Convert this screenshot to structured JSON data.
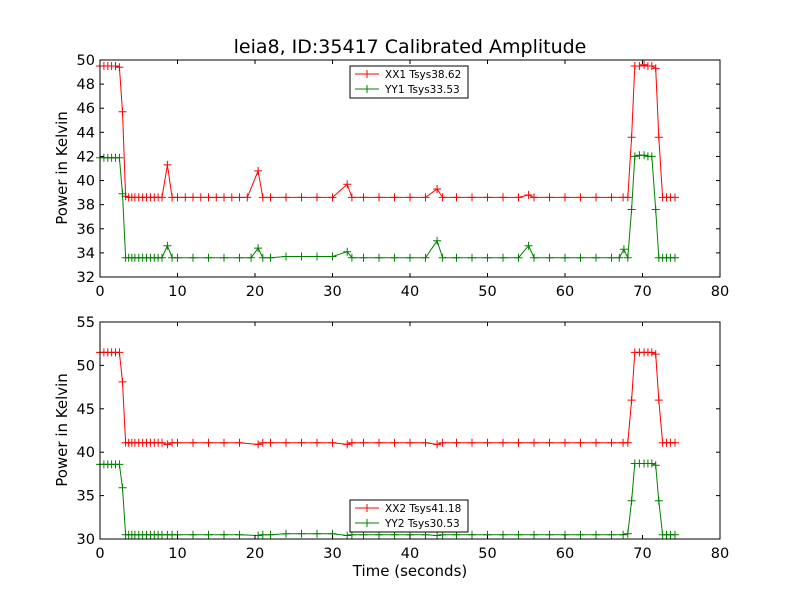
{
  "colors": {
    "xx": "#ff0000",
    "yy": "#008000"
  },
  "chart_data": [
    {
      "type": "line",
      "title": "leia8, ID:35417 Calibrated Amplitude",
      "xlabel": "",
      "ylabel": "Power in Kelvin",
      "xlim": [
        0,
        80
      ],
      "ylim": [
        32,
        50
      ],
      "xticks": [
        0,
        10,
        20,
        30,
        40,
        50,
        60,
        70,
        80
      ],
      "yticks": [
        32,
        34,
        36,
        38,
        40,
        42,
        44,
        46,
        48,
        50
      ],
      "grid": false,
      "legend_position": "top-center",
      "series": [
        {
          "name": "XX1 Tsys38.62",
          "color": "#ff0000",
          "x": [
            0.0,
            0.5,
            1.0,
            1.5,
            2.0,
            2.5,
            2.9,
            3.3,
            3.7,
            4.1,
            4.5,
            5.0,
            5.5,
            6.0,
            6.5,
            7.0,
            7.5,
            8.0,
            8.7,
            9.3,
            10.0,
            11.0,
            12.0,
            13.0,
            14.0,
            15.0,
            16.0,
            17.0,
            18.0,
            19.0,
            20.4,
            21.0,
            22.0,
            24.0,
            26.0,
            28.0,
            30.0,
            31.9,
            32.5,
            34.0,
            36.0,
            38.0,
            40.0,
            42.0,
            43.5,
            44.2,
            46.0,
            48.0,
            50.0,
            52.0,
            54.0,
            55.3,
            56.0,
            58.0,
            60.0,
            62.0,
            64.0,
            66.0,
            67.5,
            68.1,
            68.6,
            69.0,
            69.6,
            70.2,
            70.7,
            71.2,
            71.7,
            72.1,
            72.6,
            73.1,
            73.6,
            74.2
          ],
          "y": [
            49.5,
            49.5,
            49.5,
            49.5,
            49.5,
            49.4,
            45.7,
            38.7,
            38.6,
            38.6,
            38.6,
            38.6,
            38.6,
            38.6,
            38.6,
            38.6,
            38.6,
            38.6,
            41.3,
            38.6,
            38.6,
            38.6,
            38.6,
            38.6,
            38.6,
            38.6,
            38.6,
            38.6,
            38.6,
            38.6,
            40.8,
            38.6,
            38.6,
            38.6,
            38.6,
            38.6,
            38.6,
            39.7,
            38.6,
            38.6,
            38.6,
            38.6,
            38.6,
            38.6,
            39.3,
            38.6,
            38.6,
            38.6,
            38.6,
            38.6,
            38.6,
            38.8,
            38.6,
            38.6,
            38.6,
            38.6,
            38.6,
            38.6,
            38.6,
            38.6,
            43.6,
            49.5,
            49.5,
            49.6,
            49.5,
            49.5,
            49.3,
            43.6,
            38.6,
            38.6,
            38.6,
            38.6
          ]
        },
        {
          "name": "YY1 Tsys33.53",
          "color": "#008000",
          "x": [
            0.0,
            0.5,
            1.0,
            1.5,
            2.0,
            2.5,
            2.9,
            3.3,
            3.7,
            4.1,
            4.5,
            5.0,
            5.5,
            6.0,
            6.5,
            7.0,
            7.5,
            8.0,
            8.7,
            9.3,
            10.0,
            12.0,
            14.0,
            16.0,
            18.0,
            19.5,
            20.4,
            21.0,
            22.0,
            24.0,
            26.0,
            28.0,
            30.0,
            31.9,
            32.5,
            34.0,
            36.0,
            38.0,
            40.0,
            42.0,
            43.5,
            44.2,
            46.0,
            48.0,
            50.0,
            52.0,
            54.0,
            55.3,
            56.0,
            58.0,
            60.0,
            62.0,
            64.0,
            66.0,
            67.0,
            67.6,
            68.1,
            68.6,
            69.0,
            69.6,
            70.2,
            70.7,
            71.2,
            71.7,
            72.1,
            72.6,
            73.1,
            73.6,
            74.2
          ],
          "y": [
            41.9,
            41.9,
            41.9,
            41.9,
            41.9,
            41.9,
            38.9,
            33.6,
            33.6,
            33.6,
            33.6,
            33.6,
            33.6,
            33.6,
            33.6,
            33.6,
            33.6,
            33.6,
            34.6,
            33.6,
            33.6,
            33.6,
            33.6,
            33.6,
            33.6,
            33.6,
            34.4,
            33.6,
            33.6,
            33.7,
            33.7,
            33.7,
            33.7,
            34.1,
            33.6,
            33.6,
            33.6,
            33.6,
            33.6,
            33.6,
            35.0,
            33.6,
            33.6,
            33.6,
            33.6,
            33.6,
            33.6,
            34.6,
            33.6,
            33.6,
            33.6,
            33.6,
            33.6,
            33.6,
            33.6,
            34.3,
            33.6,
            37.6,
            42.0,
            42.1,
            42.1,
            42.0,
            42.0,
            37.6,
            33.6,
            33.6,
            33.6,
            33.6,
            33.6
          ]
        }
      ]
    },
    {
      "type": "line",
      "title": "",
      "xlabel": "Time (seconds)",
      "ylabel": "Power in Kelvin",
      "xlim": [
        0,
        80
      ],
      "ylim": [
        30,
        55
      ],
      "xticks": [
        0,
        10,
        20,
        30,
        40,
        50,
        60,
        70,
        80
      ],
      "yticks": [
        30,
        35,
        40,
        45,
        50,
        55
      ],
      "grid": false,
      "legend_position": "bottom-center",
      "series": [
        {
          "name": "XX2 Tsys41.18",
          "color": "#ff0000",
          "x": [
            0.0,
            0.5,
            1.0,
            1.5,
            2.0,
            2.5,
            2.9,
            3.3,
            3.7,
            4.1,
            4.5,
            5.0,
            5.5,
            6.0,
            6.5,
            7.0,
            7.5,
            8.0,
            8.7,
            9.3,
            10.0,
            12.0,
            14.0,
            16.0,
            18.0,
            20.4,
            21.0,
            22.0,
            24.0,
            26.0,
            28.0,
            30.0,
            31.9,
            32.5,
            34.0,
            36.0,
            38.0,
            40.0,
            42.0,
            43.5,
            44.2,
            46.0,
            48.0,
            50.0,
            52.0,
            54.0,
            56.0,
            58.0,
            60.0,
            62.0,
            64.0,
            66.0,
            67.5,
            68.1,
            68.6,
            69.0,
            69.6,
            70.2,
            70.7,
            71.2,
            71.7,
            72.1,
            72.6,
            73.1,
            73.6,
            74.2
          ],
          "y": [
            51.5,
            51.5,
            51.5,
            51.5,
            51.5,
            51.5,
            48.1,
            41.1,
            41.1,
            41.1,
            41.1,
            41.1,
            41.1,
            41.1,
            41.1,
            41.1,
            41.1,
            41.1,
            40.9,
            41.1,
            41.1,
            41.1,
            41.1,
            41.1,
            41.1,
            40.9,
            41.1,
            41.1,
            41.1,
            41.1,
            41.1,
            41.1,
            40.9,
            41.1,
            41.1,
            41.1,
            41.1,
            41.1,
            41.1,
            40.9,
            41.1,
            41.1,
            41.1,
            41.1,
            41.1,
            41.1,
            41.1,
            41.1,
            41.1,
            41.1,
            41.1,
            41.1,
            41.1,
            41.1,
            46.0,
            51.5,
            51.5,
            51.5,
            51.5,
            51.5,
            51.3,
            46.0,
            41.1,
            41.1,
            41.1,
            41.1
          ]
        },
        {
          "name": "YY2 Tsys30.53",
          "color": "#008000",
          "x": [
            0.0,
            0.5,
            1.0,
            1.5,
            2.0,
            2.5,
            2.9,
            3.3,
            3.7,
            4.1,
            4.5,
            5.0,
            5.5,
            6.0,
            6.5,
            7.0,
            7.5,
            8.0,
            8.7,
            9.3,
            10.0,
            12.0,
            14.0,
            16.0,
            18.0,
            20.4,
            21.0,
            22.0,
            24.0,
            26.0,
            28.0,
            30.0,
            31.9,
            32.5,
            34.0,
            36.0,
            38.0,
            40.0,
            42.0,
            43.5,
            44.2,
            46.0,
            48.0,
            50.0,
            52.0,
            54.0,
            56.0,
            58.0,
            60.0,
            62.0,
            64.0,
            66.0,
            67.5,
            68.1,
            68.6,
            69.0,
            69.6,
            70.2,
            70.7,
            71.2,
            71.7,
            72.1,
            72.6,
            73.1,
            73.6,
            74.2
          ],
          "y": [
            38.6,
            38.6,
            38.6,
            38.6,
            38.6,
            38.6,
            35.9,
            30.5,
            30.5,
            30.5,
            30.5,
            30.5,
            30.5,
            30.5,
            30.5,
            30.5,
            30.5,
            30.5,
            30.5,
            30.5,
            30.5,
            30.5,
            30.5,
            30.5,
            30.5,
            30.4,
            30.5,
            30.5,
            30.6,
            30.6,
            30.6,
            30.6,
            30.4,
            30.5,
            30.5,
            30.5,
            30.5,
            30.5,
            30.5,
            30.4,
            30.5,
            30.5,
            30.5,
            30.5,
            30.5,
            30.5,
            30.5,
            30.5,
            30.5,
            30.5,
            30.5,
            30.5,
            30.5,
            30.6,
            34.4,
            38.7,
            38.7,
            38.7,
            38.7,
            38.7,
            38.5,
            34.4,
            30.5,
            30.5,
            30.5,
            30.5
          ]
        }
      ]
    }
  ]
}
